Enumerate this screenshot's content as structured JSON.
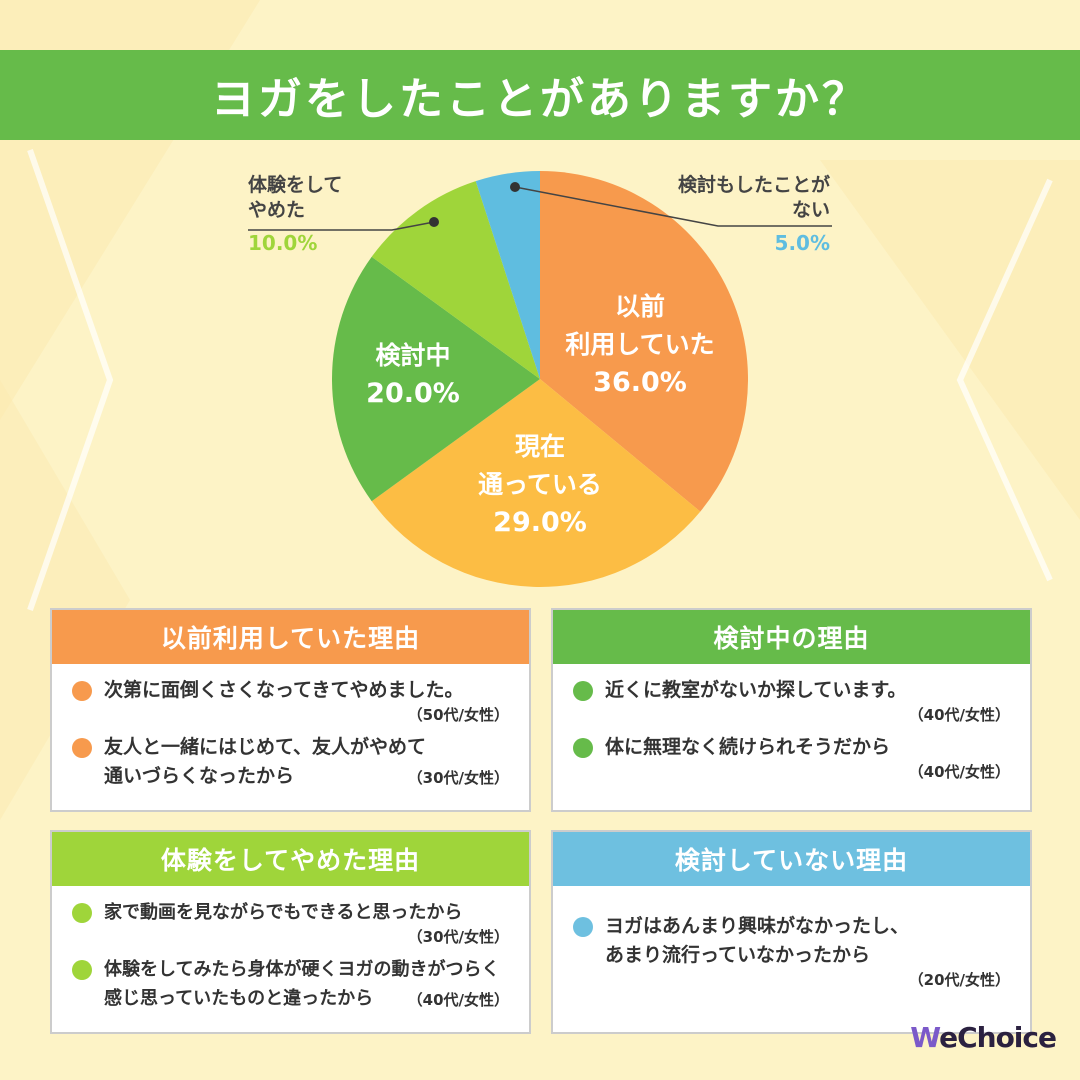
{
  "title": "ヨガをしたことがありますか？",
  "chart_data": {
    "type": "pie",
    "slices": [
      {
        "label": "以前\n利用していた",
        "value": 36.0,
        "value_label": "36.0%",
        "color": "#f79a4d",
        "label_inside": true
      },
      {
        "label": "現在\n通っている",
        "value": 29.0,
        "value_label": "29.0%",
        "color": "#fcbd44",
        "label_inside": true
      },
      {
        "label": "検討中",
        "value": 20.0,
        "value_label": "20.0%",
        "color": "#66bb4a",
        "label_inside": true
      },
      {
        "label": "体験をして\nやめた",
        "value": 10.0,
        "value_label": "10.0%",
        "color": "#9fd53a",
        "label_inside": false
      },
      {
        "label": "検討もしたことが\nない",
        "value": 5.0,
        "value_label": "5.0%",
        "color": "#5fbde0",
        "label_inside": false
      }
    ],
    "start": "12 o'clock",
    "direction": "clockwise"
  },
  "callouts": {
    "left": {
      "line1": "体験をして",
      "line2": "やめた",
      "pct": "10.0%",
      "color": "#9fd53a"
    },
    "right": {
      "line1": "検討もしたことが",
      "line2": "ない",
      "pct": "5.0%",
      "color": "#5fbde0"
    }
  },
  "slice_labels": {
    "s0": {
      "line1": "以前",
      "line2": "利用していた",
      "pct": "36.0%"
    },
    "s1": {
      "line1": "現在",
      "line2": "通っている",
      "pct": "29.0%"
    },
    "s2": {
      "line1": "検討中",
      "pct": "20.0%"
    }
  },
  "reasons": {
    "previous": {
      "header": "以前利用していた理由",
      "color": "#f79a4d",
      "items": [
        {
          "text": "次第に面倒くさくなってきてやめました。",
          "who": "（50代/女性）"
        },
        {
          "text1": "友人と一緒にはじめて、友人がやめて",
          "text2": "通いづらくなったから",
          "who": "（30代/女性）"
        }
      ]
    },
    "considering": {
      "header": "検討中の理由",
      "color": "#66bb4a",
      "items": [
        {
          "text": "近くに教室がないか探しています。",
          "who": "（40代/女性）"
        },
        {
          "text": "体に無理なく続けられそうだから",
          "who": "（40代/女性）"
        }
      ]
    },
    "quit": {
      "header": "体験をしてやめた理由",
      "color": "#9fd53a",
      "items": [
        {
          "text": "家で動画を見ながらでもできると思ったから",
          "who": "（30代/女性）"
        },
        {
          "text1": "体験をしてみたら身体が硬くヨガの動きがつらく",
          "text2": "感じ思っていたものと違ったから",
          "who": "（40代/女性）"
        }
      ]
    },
    "never": {
      "header": "検討していない理由",
      "color": "#6ec0e0",
      "items": [
        {
          "text1": "ヨガはあんまり興味がなかったし、",
          "text2": "あまり流行っていなかったから",
          "who": "（20代/女性）"
        }
      ]
    }
  },
  "logo": {
    "w": "W",
    "rest": "eChoice"
  }
}
